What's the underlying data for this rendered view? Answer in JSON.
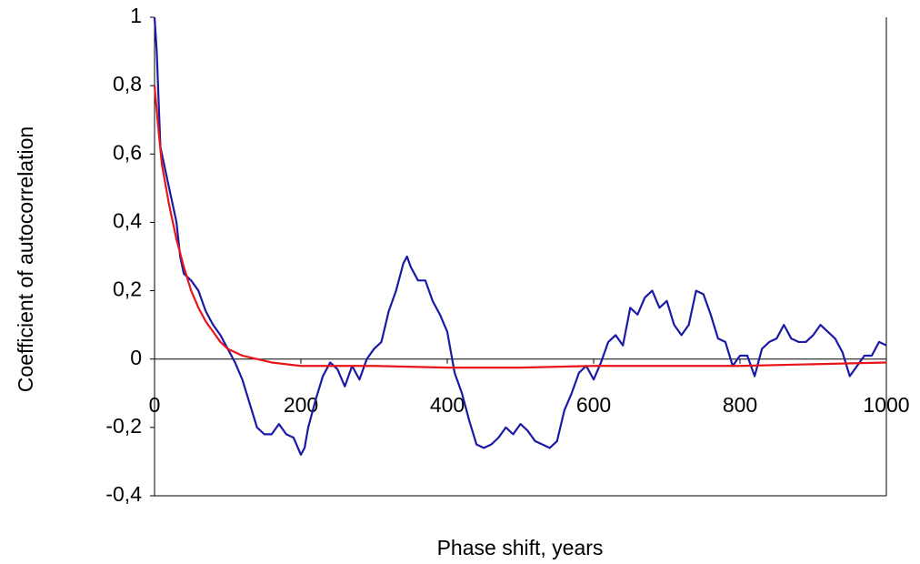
{
  "chart_data": {
    "type": "line",
    "x_label": "Phase shift, years",
    "y_label": "Coefficient of autocorrelation",
    "xlim": [
      0,
      1000
    ],
    "xticks": [
      0,
      200,
      400,
      600,
      800,
      1000
    ],
    "ylim": [
      -0.4,
      1
    ],
    "yticks": [
      {
        "value": -0.4,
        "label": "-0,4"
      },
      {
        "value": -0.2,
        "label": "-0,2"
      },
      0,
      {
        "value": 0.2,
        "label": "0,2"
      },
      {
        "value": 0.4,
        "label": "0,4"
      },
      {
        "value": 0.6,
        "label": "0,6"
      },
      {
        "value": 0.8,
        "label": "0,8"
      },
      1
    ],
    "grid": false,
    "series": [
      {
        "color": "#1a1aa6",
        "x": [
          0,
          3,
          8,
          15,
          20,
          25,
          30,
          35,
          40,
          50,
          60,
          70,
          80,
          90,
          100,
          110,
          120,
          130,
          140,
          150,
          160,
          170,
          180,
          190,
          200,
          205,
          210,
          220,
          230,
          240,
          250,
          260,
          270,
          280,
          290,
          300,
          310,
          320,
          330,
          340,
          345,
          350,
          360,
          370,
          380,
          390,
          400,
          410,
          420,
          430,
          440,
          450,
          460,
          470,
          480,
          490,
          500,
          510,
          520,
          530,
          540,
          550,
          560,
          570,
          580,
          590,
          600,
          610,
          620,
          630,
          640,
          650,
          660,
          670,
          680,
          690,
          700,
          710,
          720,
          730,
          740,
          750,
          760,
          770,
          780,
          790,
          800,
          810,
          820,
          830,
          840,
          850,
          860,
          870,
          880,
          890,
          900,
          910,
          920,
          930,
          940,
          950,
          960,
          970,
          980,
          990,
          1000
        ],
        "values": [
          1.0,
          0.9,
          0.62,
          0.55,
          0.5,
          0.45,
          0.4,
          0.3,
          0.25,
          0.23,
          0.2,
          0.14,
          0.1,
          0.07,
          0.03,
          -0.01,
          -0.06,
          -0.13,
          -0.2,
          -0.22,
          -0.22,
          -0.19,
          -0.22,
          -0.23,
          -0.28,
          -0.26,
          -0.2,
          -0.12,
          -0.05,
          -0.01,
          -0.03,
          -0.08,
          -0.02,
          -0.06,
          0.0,
          0.03,
          0.05,
          0.14,
          0.2,
          0.28,
          0.3,
          0.27,
          0.23,
          0.23,
          0.17,
          0.13,
          0.08,
          -0.04,
          -0.1,
          -0.18,
          -0.25,
          -0.26,
          -0.25,
          -0.23,
          -0.2,
          -0.22,
          -0.19,
          -0.21,
          -0.24,
          -0.25,
          -0.26,
          -0.24,
          -0.15,
          -0.1,
          -0.04,
          -0.02,
          -0.06,
          -0.01,
          0.05,
          0.07,
          0.04,
          0.15,
          0.13,
          0.18,
          0.2,
          0.15,
          0.17,
          0.1,
          0.07,
          0.1,
          0.2,
          0.19,
          0.13,
          0.06,
          0.05,
          -0.02,
          0.01,
          0.01,
          -0.05,
          0.03,
          0.05,
          0.06,
          0.1,
          0.06,
          0.05,
          0.05,
          0.07,
          0.1,
          0.08,
          0.06,
          0.02,
          -0.05,
          -0.02,
          0.01,
          0.01,
          0.05,
          0.04
        ]
      },
      {
        "color": "#e8141a",
        "x": [
          0,
          5,
          10,
          20,
          30,
          40,
          50,
          60,
          70,
          80,
          90,
          100,
          120,
          140,
          160,
          200,
          300,
          400,
          500,
          600,
          700,
          800,
          900,
          1000
        ],
        "values": [
          0.8,
          0.68,
          0.57,
          0.45,
          0.35,
          0.27,
          0.2,
          0.15,
          0.11,
          0.08,
          0.05,
          0.03,
          0.01,
          0.0,
          -0.01,
          -0.02,
          -0.02,
          -0.025,
          -0.025,
          -0.02,
          -0.02,
          -0.02,
          -0.015,
          -0.01
        ]
      }
    ]
  }
}
